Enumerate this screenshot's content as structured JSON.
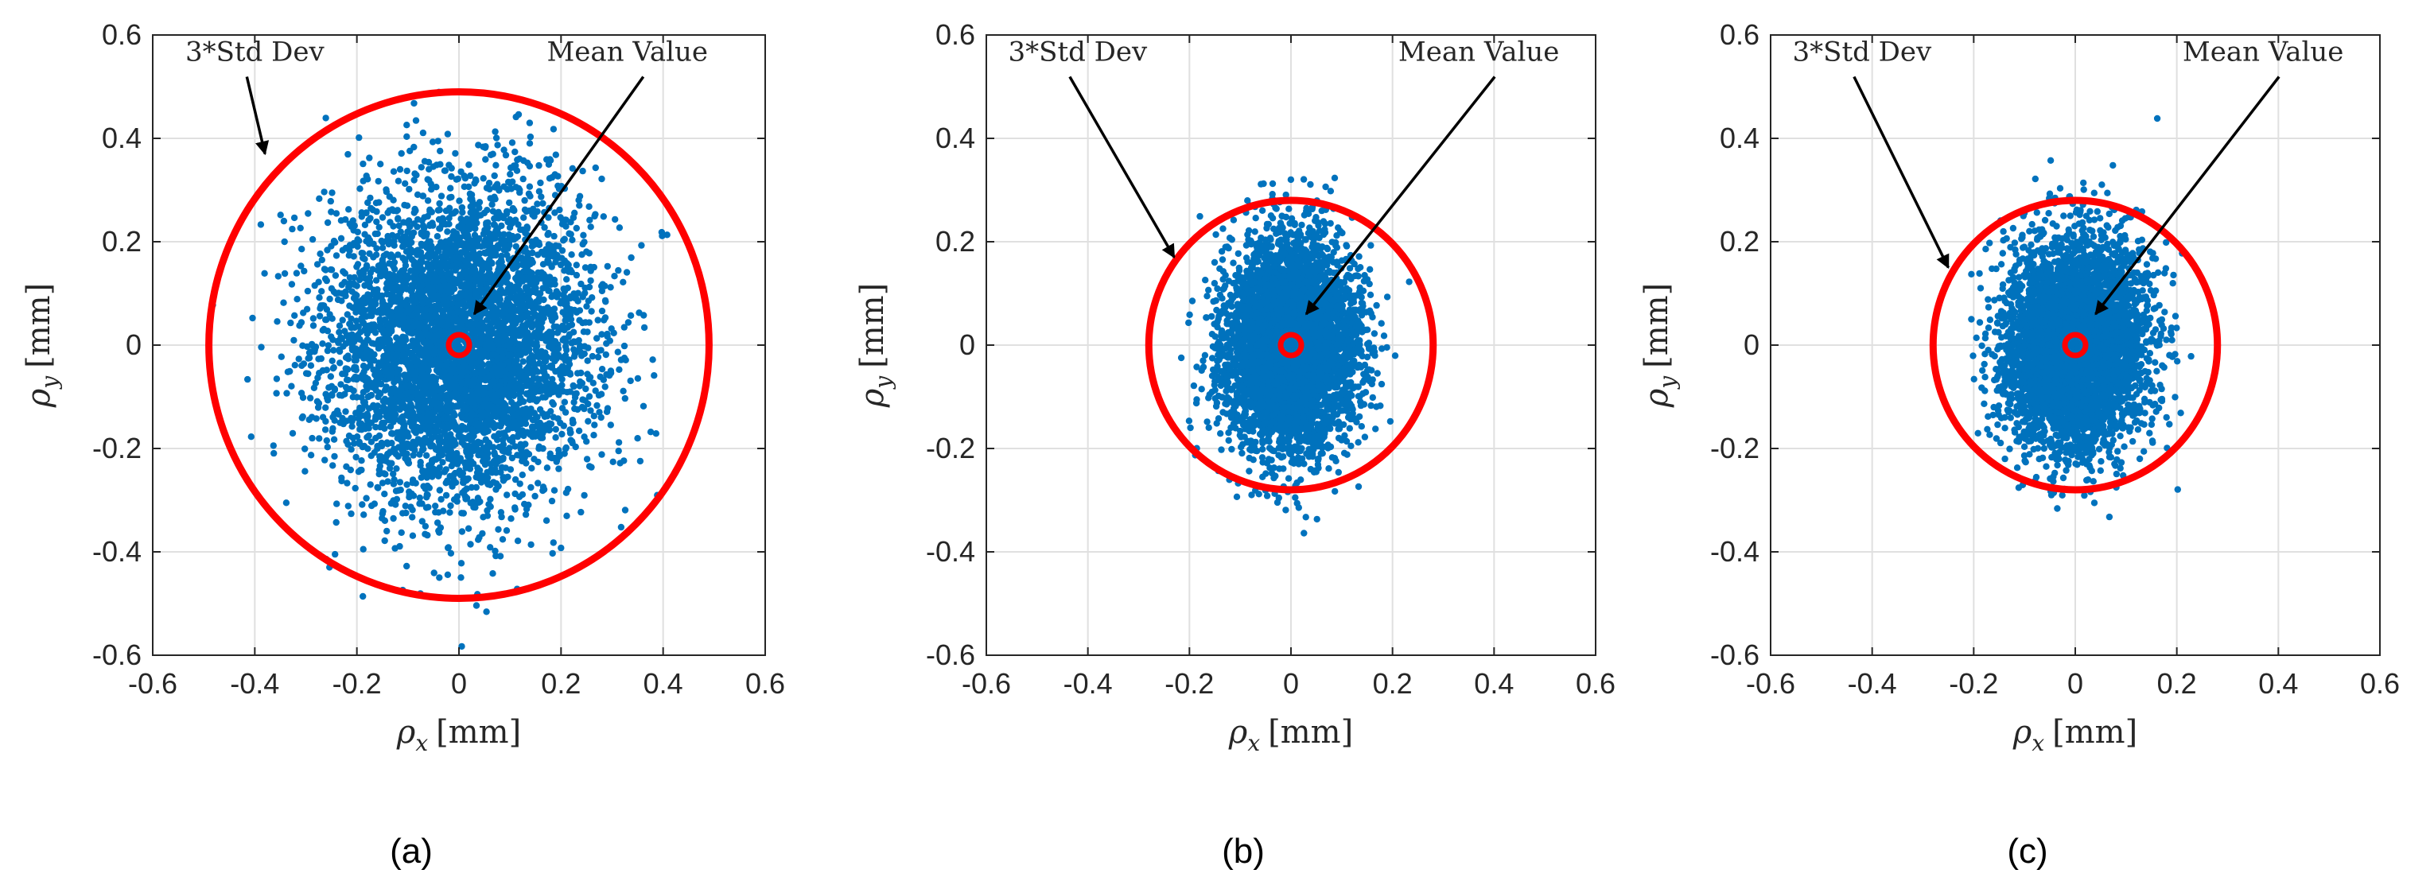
{
  "chart_data": [
    {
      "type": "scatter",
      "panel_label": "(a)",
      "xlabel": "ρx [mm]",
      "ylabel": "ρy [mm]",
      "xlim": [
        -0.6,
        0.6
      ],
      "ylim": [
        -0.6,
        0.6
      ],
      "xticks": [
        "-0.6",
        "-0.4",
        "-0.2",
        "0",
        "0.2",
        "0.4",
        "0.6"
      ],
      "yticks": [
        "-0.6",
        "-0.4",
        "-0.2",
        "0",
        "0.2",
        "0.4",
        "0.6"
      ],
      "grid": true,
      "points": {
        "count": 5000,
        "mean": [
          0,
          0
        ],
        "std_x": 0.13,
        "std_y": 0.15,
        "clip_x": [
          -0.6,
          0.52
        ],
        "clip_y": [
          -0.6,
          0.6
        ],
        "color": "#0072BD"
      },
      "std_circle": {
        "center": [
          0,
          0
        ],
        "radius": 0.49,
        "color": "#FF0000"
      },
      "mean_marker": {
        "center": [
          0,
          0
        ],
        "color": "#FF0000"
      },
      "annotations": [
        {
          "text": "3*Std Dev",
          "text_at": [
            -0.4,
            0.55
          ],
          "arrow_to": [
            -0.38,
            0.37
          ]
        },
        {
          "text": "Mean Value",
          "text_at": [
            0.33,
            0.55
          ],
          "arrow_to": [
            0.03,
            0.06
          ]
        }
      ]
    },
    {
      "type": "scatter",
      "panel_label": "(b)",
      "xlabel": "ρx [mm]",
      "ylabel": "ρy [mm]",
      "xlim": [
        -0.6,
        0.6
      ],
      "ylim": [
        -0.6,
        0.6
      ],
      "xticks": [
        "-0.6",
        "-0.4",
        "-0.2",
        "0",
        "0.2",
        "0.4",
        "0.6"
      ],
      "yticks": [
        "-0.6",
        "-0.4",
        "-0.2",
        "0",
        "0.2",
        "0.4",
        "0.6"
      ],
      "grid": true,
      "points": {
        "count": 5000,
        "mean": [
          0,
          0
        ],
        "std_x": 0.065,
        "std_y": 0.1,
        "clip_x": [
          -0.22,
          0.34
        ],
        "clip_y": [
          -0.37,
          0.57
        ],
        "color": "#0072BD"
      },
      "std_circle": {
        "center": [
          0,
          0
        ],
        "radius": 0.28,
        "color": "#FF0000"
      },
      "mean_marker": {
        "center": [
          0,
          0
        ],
        "color": "#FF0000"
      },
      "annotations": [
        {
          "text": "3*Std Dev",
          "text_at": [
            -0.42,
            0.55
          ],
          "arrow_to": [
            -0.23,
            0.17
          ]
        },
        {
          "text": "Mean Value",
          "text_at": [
            0.37,
            0.55
          ],
          "arrow_to": [
            0.03,
            0.06
          ]
        }
      ]
    },
    {
      "type": "scatter",
      "panel_label": "(c)",
      "xlabel": "ρx [mm]",
      "ylabel": "ρy [mm]",
      "xlim": [
        -0.6,
        0.6
      ],
      "ylim": [
        -0.6,
        0.6
      ],
      "xticks": [
        "-0.6",
        "-0.4",
        "-0.2",
        "0",
        "0.2",
        "0.4",
        "0.6"
      ],
      "yticks": [
        "-0.6",
        "-0.4",
        "-0.2",
        "0",
        "0.2",
        "0.4",
        "0.6"
      ],
      "grid": true,
      "points": {
        "count": 5000,
        "mean": [
          0,
          0
        ],
        "std_x": 0.068,
        "std_y": 0.1,
        "clip_x": [
          -0.22,
          0.38
        ],
        "clip_y": [
          -0.4,
          0.58
        ],
        "color": "#0072BD"
      },
      "std_circle": {
        "center": [
          0,
          0
        ],
        "radius": 0.28,
        "color": "#FF0000"
      },
      "mean_marker": {
        "center": [
          0,
          0
        ],
        "color": "#FF0000"
      },
      "annotations": [
        {
          "text": "3*Std Dev",
          "text_at": [
            -0.42,
            0.55
          ],
          "arrow_to": [
            -0.25,
            0.15
          ]
        },
        {
          "text": "Mean Value",
          "text_at": [
            0.37,
            0.55
          ],
          "arrow_to": [
            0.04,
            0.06
          ]
        }
      ]
    }
  ]
}
